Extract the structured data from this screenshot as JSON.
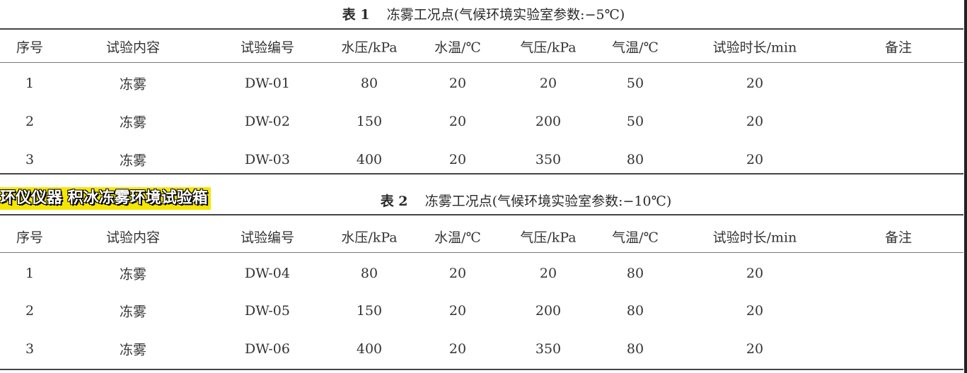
{
  "tables": [
    {
      "label": "表 1",
      "title": "冻雾工况点(气候环境实验室参数:−5℃)",
      "headers": [
        "序号",
        "试验内容",
        "试验编号",
        "水压/kPa",
        "水温/℃",
        "气压/kPa",
        "气温/℃",
        "试验时长/min",
        "备注"
      ],
      "rows": [
        [
          "1",
          "冻雾",
          "DW-01",
          "80",
          "20",
          "20",
          "50",
          "20",
          ""
        ],
        [
          "2",
          "冻雾",
          "DW-02",
          "150",
          "20",
          "200",
          "50",
          "20",
          ""
        ],
        [
          "3",
          "冻雾",
          "DW-03",
          "400",
          "20",
          "350",
          "80",
          "20",
          ""
        ]
      ]
    },
    {
      "label": "表 2",
      "title": "冻雾工况点(气候环境实验室参数:−10℃)",
      "headers": [
        "序号",
        "试验内容",
        "试验编号",
        "水压/kPa",
        "水温/℃",
        "气压/kPa",
        "气温/℃",
        "试验时长/min",
        "备注"
      ],
      "rows": [
        [
          "1",
          "冻雾",
          "DW-04",
          "80",
          "20",
          "20",
          "80",
          "20",
          ""
        ],
        [
          "2",
          "冻雾",
          "DW-05",
          "150",
          "20",
          "200",
          "80",
          "20",
          ""
        ],
        [
          "3",
          "冻雾",
          "DW-06",
          "400",
          "20",
          "350",
          "80",
          "20",
          ""
        ]
      ]
    }
  ],
  "banner": "环仪仪器 积冰冻雾环境试验箱",
  "colors": {
    "banner_bg": "#f5e600",
    "banner_text": "#ffffff"
  }
}
